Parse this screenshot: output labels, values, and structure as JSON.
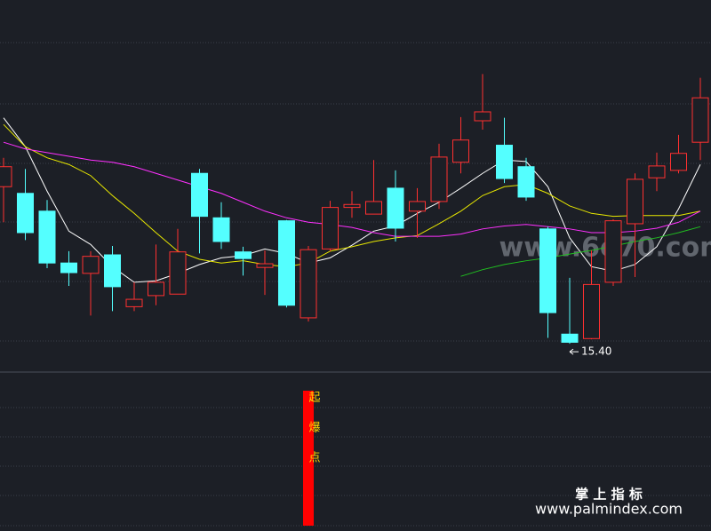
{
  "chart_data": {
    "type": "candlestick",
    "ylim": [
      15.03,
      20.04
    ],
    "up_color": "#ff3030",
    "down_color": "#54ffff",
    "open": [
      17.52,
      17.43,
      17.19,
      16.49,
      16.35,
      16.6,
      15.9,
      16.05,
      16.07,
      17.7,
      17.1,
      16.64,
      16.43,
      17.06,
      15.75,
      16.68,
      17.24,
      17.15,
      17.5,
      17.19,
      17.32,
      17.85,
      18.41,
      18.08,
      17.79,
      16.95,
      15.53,
      15.47,
      16.23,
      17.02,
      17.64,
      17.74,
      18.12
    ],
    "high": [
      17.91,
      17.76,
      17.34,
      16.65,
      16.65,
      16.72,
      16.23,
      16.74,
      16.95,
      17.76,
      17.31,
      16.71,
      16.66,
      17.07,
      16.72,
      17.33,
      17.46,
      17.88,
      17.74,
      17.5,
      18.1,
      18.46,
      19.04,
      18.45,
      17.91,
      16.98,
      16.29,
      16.66,
      17.08,
      17.7,
      17.98,
      18.22,
      18.99
    ],
    "low": [
      17.04,
      16.8,
      16.42,
      16.18,
      15.78,
      15.84,
      15.84,
      15.92,
      16.07,
      16.62,
      16.68,
      16.32,
      16.06,
      15.89,
      15.7,
      16.65,
      17.1,
      17.15,
      16.78,
      16.83,
      17.22,
      17.7,
      18.29,
      17.57,
      17.33,
      15.48,
      15.4,
      15.46,
      16.18,
      16.3,
      17.46,
      17.7,
      17.88
    ],
    "close": [
      17.79,
      16.9,
      16.49,
      16.36,
      16.58,
      16.17,
      16.0,
      16.23,
      16.64,
      17.12,
      16.78,
      16.55,
      16.48,
      15.92,
      16.67,
      17.24,
      17.28,
      17.32,
      16.96,
      17.32,
      17.92,
      18.15,
      18.53,
      17.63,
      17.38,
      15.82,
      15.42,
      16.2,
      17.06,
      17.62,
      17.8,
      17.97,
      18.72
    ],
    "series": [
      {
        "color": "#ffffff",
        "values": [
          18.45,
          18.06,
          17.46,
          16.92,
          16.74,
          16.44,
          16.23,
          16.25,
          16.35,
          16.47,
          16.56,
          16.59,
          16.68,
          16.62,
          16.49,
          16.56,
          16.73,
          16.92,
          16.99,
          17.16,
          17.31,
          17.5,
          17.7,
          17.88,
          17.86,
          17.52,
          16.83,
          16.44,
          16.38,
          16.47,
          16.71,
          17.22,
          17.82
        ]
      },
      {
        "color": "#e8e800",
        "values": [
          18.36,
          18.06,
          17.91,
          17.82,
          17.67,
          17.4,
          17.16,
          16.9,
          16.65,
          16.54,
          16.49,
          16.52,
          16.47,
          16.44,
          16.49,
          16.65,
          16.71,
          16.78,
          16.83,
          16.86,
          17.02,
          17.19,
          17.4,
          17.52,
          17.55,
          17.43,
          17.26,
          17.16,
          17.12,
          17.13,
          17.13,
          17.13,
          17.19
        ]
      },
      {
        "color": "#ff30ff",
        "values": [
          18.12,
          18.03,
          17.98,
          17.93,
          17.88,
          17.85,
          17.79,
          17.7,
          17.61,
          17.52,
          17.43,
          17.31,
          17.19,
          17.1,
          17.04,
          17.01,
          16.97,
          16.9,
          16.85,
          16.85,
          16.85,
          16.88,
          16.95,
          16.99,
          17.01,
          16.98,
          16.95,
          16.9,
          16.9,
          16.92,
          16.96,
          17.04,
          17.19
        ]
      },
      {
        "color": "#20c020",
        "values": [
          null,
          null,
          null,
          null,
          null,
          null,
          null,
          null,
          null,
          null,
          null,
          null,
          null,
          null,
          null,
          null,
          null,
          null,
          null,
          null,
          null,
          16.31,
          16.4,
          16.47,
          16.52,
          16.56,
          16.61,
          16.66,
          16.72,
          16.78,
          16.83,
          16.9,
          16.98
        ]
      }
    ],
    "low_annotation": "15.40",
    "signal_label": [
      "起",
      "爆",
      "点"
    ],
    "watermark": "www.6o70.com",
    "brand_title": "掌 上 指 标",
    "brand_url": "www.palmindex.com"
  }
}
